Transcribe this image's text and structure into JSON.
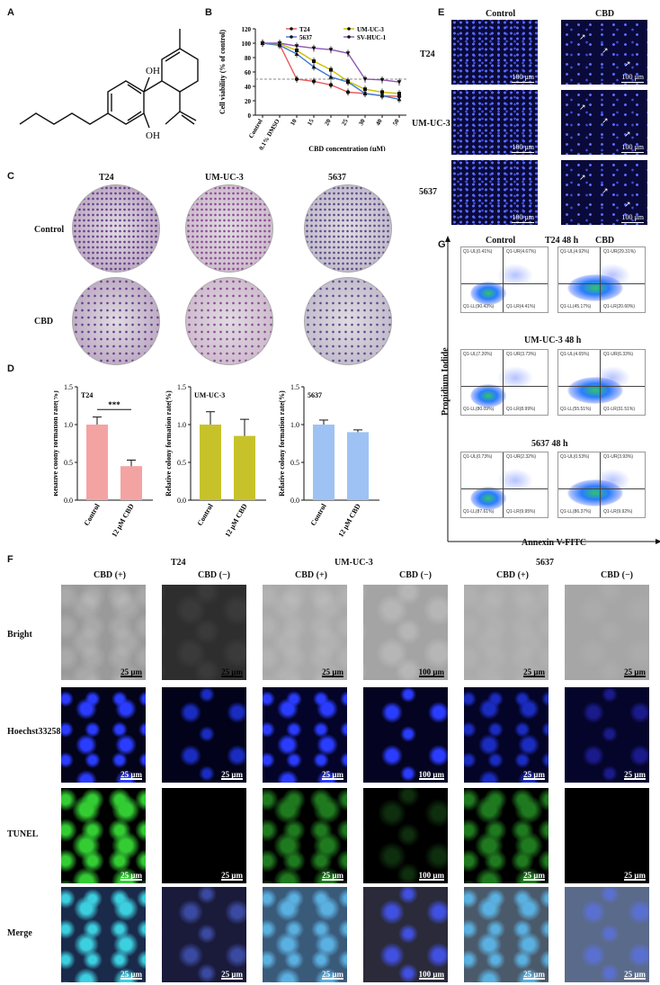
{
  "panels": {
    "A": "A",
    "B": "B",
    "C": "C",
    "D": "D",
    "E": "E",
    "F": "F",
    "G": "G"
  },
  "structure": {
    "oh1": "OH",
    "oh2": "OH"
  },
  "chart_b": {
    "type": "line",
    "ylabel": "Cell viability (% of control)",
    "xlabel": "CBD concentration (μM)",
    "categories": [
      "Control",
      "0.1% DMSO",
      "10",
      "15",
      "20",
      "25",
      "30",
      "40",
      "50"
    ],
    "yticks": [
      "0",
      "20",
      "40",
      "60",
      "80",
      "100",
      "120"
    ],
    "legend": [
      "T24",
      "5637",
      "UM-UC-3",
      "SV-HUC-1"
    ]
  },
  "chart_data": [
    {
      "type": "line",
      "title": "",
      "xlabel": "CBD concentration (μM)",
      "ylabel": "Cell viability (% of control)",
      "categories": [
        "Control",
        "0.1% DMSO",
        "10",
        "15",
        "20",
        "25",
        "30",
        "40",
        "50"
      ],
      "ylim": [
        0,
        120
      ],
      "series": [
        {
          "name": "T24",
          "values": [
            100,
            98,
            50,
            47,
            42,
            32,
            30,
            27,
            26
          ]
        },
        {
          "name": "5637",
          "values": [
            100,
            97,
            85,
            67,
            53,
            46,
            30,
            27,
            22
          ]
        },
        {
          "name": "UM-UC-3",
          "values": [
            100,
            99,
            90,
            75,
            63,
            47,
            36,
            32,
            30
          ]
        },
        {
          "name": "SV-HUC-1",
          "values": [
            100,
            100,
            96,
            93,
            91,
            86,
            50,
            49,
            46
          ]
        }
      ]
    },
    {
      "type": "bar",
      "title": "T24",
      "ylabel": "Relative colony formation rate(%)",
      "categories": [
        "Control",
        "12 μM CBD"
      ],
      "values": [
        1.0,
        0.45
      ],
      "ylim": [
        0,
        1.5
      ],
      "annotation": "***"
    },
    {
      "type": "bar",
      "title": "UM-UC-3",
      "ylabel": "Relative colony formation rate(%)",
      "categories": [
        "Control",
        "12 μM CBD"
      ],
      "values": [
        1.0,
        0.85
      ],
      "ylim": [
        0,
        1.5
      ]
    },
    {
      "type": "bar",
      "title": "5637",
      "ylabel": "Relative colony formation rate(%)",
      "categories": [
        "Control",
        "12 μM CBD"
      ],
      "values": [
        1.0,
        0.9
      ],
      "ylim": [
        0,
        1.5
      ]
    }
  ],
  "panel_c": {
    "cols": [
      "T24",
      "UM-UC-3",
      "5637"
    ],
    "rows": [
      "Control",
      "CBD"
    ]
  },
  "panel_d": {
    "ylabel": "Relative colony formation rate(%)",
    "yticks": [
      "0.0",
      "0.5",
      "1.0",
      "1.5"
    ],
    "cats": [
      "Control",
      "12 μM CBD"
    ],
    "sig": "***",
    "titles": [
      "T24",
      "UM-UC-3",
      "5637"
    ]
  },
  "panel_e": {
    "cols": [
      "Control",
      "CBD"
    ],
    "rows": [
      "T24",
      "UM-UC-3",
      "5637"
    ],
    "scale": "100 μm"
  },
  "panel_g": {
    "cols": [
      "Control",
      "CBD"
    ],
    "rows": [
      "T24 48 h",
      "UM-UC-3 48 h",
      "5637 48 h"
    ],
    "ylabel": "Propidium Iodide",
    "xlabel": "Annexin V-FITC",
    "quads": [
      [
        "Q1-UL(0.41%)",
        "Q1-UR(4.67%)",
        "Q1-LL(90.43%)",
        "Q1-LR(4.41%)"
      ],
      [
        "Q1-UL(4.92%)",
        "Q1-UR(29.31%)",
        "Q1-LL(45.17%)",
        "Q1-LR(20.60%)"
      ],
      [
        "Q1-UL(7.20%)",
        "Q1-UR(3.73%)",
        "Q1-LL(80.09%)",
        "Q1-LR(8.99%)"
      ],
      [
        "Q1-UL(4.65%)",
        "Q1-UR(6.33%)",
        "Q1-LL(55.51%)",
        "Q1-LR(31.51%)"
      ],
      [
        "Q1-UL(0.73%)",
        "Q1-UR(2.32%)",
        "Q1-LL(87.61%)",
        "Q1-LR(9.95%)"
      ],
      [
        "Q1-UL(0.53%)",
        "Q1-UR(3.93%)",
        "Q1-LL(86.37%)",
        "Q1-LR(9.92%)"
      ]
    ]
  },
  "panel_f": {
    "groups": [
      "T24",
      "UM-UC-3",
      "5637"
    ],
    "cols": [
      "CBD (+)",
      "CBD (−)",
      "CBD (+)",
      "CBD (−)",
      "CBD (+)",
      "CBD (−)"
    ],
    "rows": [
      "Bright",
      "Hoechst33258",
      "TUNEL",
      "Merge"
    ],
    "scales": [
      "25 μm",
      "25 μm",
      "25 μm",
      "100 μm",
      "25 μm",
      "25 μm"
    ]
  },
  "colors": {
    "t24": "#f4a3a3",
    "umuc3": "#c8c22a",
    "c5637": "#9ec2f4",
    "red": "#e8585e",
    "blue": "#3a7bd5",
    "yellow": "#c9c000",
    "purple": "#8e55b5"
  }
}
